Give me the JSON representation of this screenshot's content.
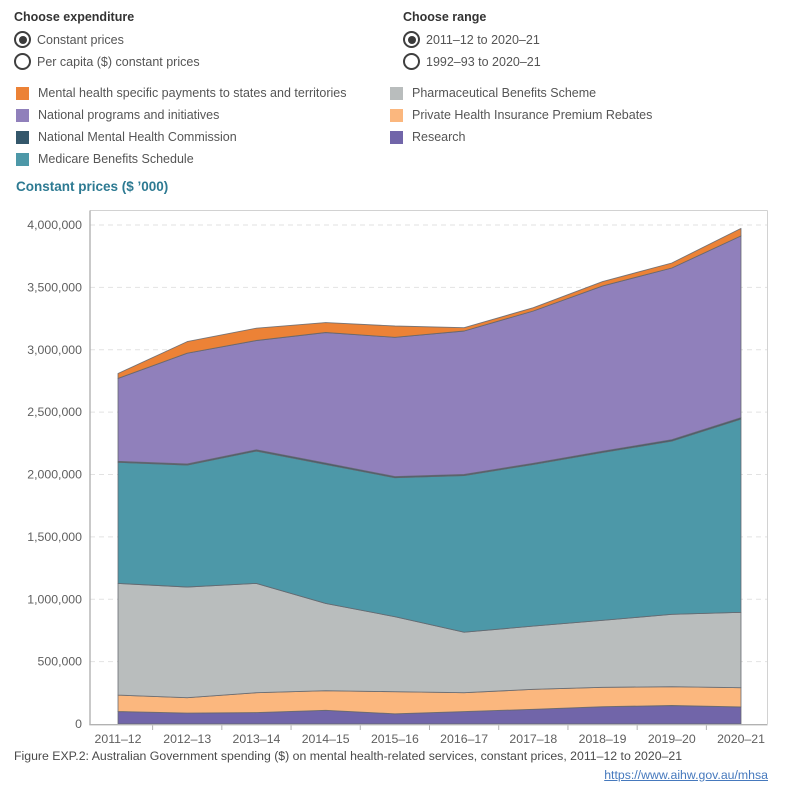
{
  "controls": {
    "expenditure": {
      "label": "Choose expenditure",
      "options": [
        {
          "label": "Constant prices",
          "selected": true
        },
        {
          "label": "Per capita ($) constant prices",
          "selected": false
        }
      ]
    },
    "range": {
      "label": "Choose range",
      "options": [
        {
          "label": "2011–12 to 2020–21",
          "selected": true
        },
        {
          "label": "1992–93 to 2020–21",
          "selected": false
        }
      ]
    }
  },
  "legend": {
    "columns": [
      [
        {
          "label": "Mental health specific payments to states and territories",
          "color": "#ec8236"
        },
        {
          "label": "National programs and initiatives",
          "color": "#9080bb"
        },
        {
          "label": "National Mental Health Commission",
          "color": "#34576b"
        },
        {
          "label": "Medicare Benefits Schedule",
          "color": "#4d98a8"
        }
      ],
      [
        {
          "label": "Pharmaceutical Benefits Scheme",
          "color": "#b9bdbd"
        },
        {
          "label": "Private Health Insurance Premium Rebates",
          "color": "#fbb77e"
        },
        {
          "label": "Research",
          "color": "#7165a9"
        }
      ]
    ]
  },
  "chart_title": "Constant prices ($ ’000)",
  "chart_data": {
    "type": "area",
    "stacked": true,
    "title": "Constant prices ($ ’000)",
    "x_categories": [
      "2011–12",
      "2012–13",
      "2013–14",
      "2014–15",
      "2015–16",
      "2016–17",
      "2017–18",
      "2018–19",
      "2019–20",
      "2020–21"
    ],
    "ylim": [
      0,
      4000000
    ],
    "ytick_step": 500000,
    "grid": "horizontal-dashed",
    "legend_position": "top",
    "units": "$ thousands, constant prices",
    "series_bottom_to_top": [
      {
        "name": "Research",
        "color": "#7165a9",
        "values": [
          100000,
          87000,
          91000,
          110000,
          82000,
          99000,
          118000,
          139000,
          148000,
          137000
        ]
      },
      {
        "name": "Private Health Insurance Premium Rebates",
        "color": "#fbb77e",
        "values": [
          132000,
          124000,
          160000,
          157000,
          177000,
          152000,
          160000,
          155000,
          151000,
          154000
        ]
      },
      {
        "name": "Pharmaceutical Benefits Scheme",
        "color": "#b9bdbd",
        "values": [
          895000,
          887000,
          876000,
          700000,
          601000,
          485000,
          507000,
          537000,
          580000,
          604000
        ]
      },
      {
        "name": "Medicare Benefits Schedule",
        "color": "#4d98a8",
        "values": [
          971000,
          977000,
          1061000,
          1114000,
          1114000,
          1256000,
          1296000,
          1346000,
          1389000,
          1549000
        ]
      },
      {
        "name": "National Mental Health Commission",
        "color": "#34576b",
        "values": [
          8000,
          9000,
          10000,
          10000,
          9000,
          9000,
          9000,
          10000,
          11000,
          11000
        ]
      },
      {
        "name": "National programs and initiatives",
        "color": "#9080bb",
        "values": [
          664000,
          888000,
          876000,
          1047000,
          1117000,
          1149000,
          1221000,
          1325000,
          1376000,
          1458000
        ]
      },
      {
        "name": "Mental health specific payments to states and territories",
        "color": "#ec8236",
        "values": [
          40000,
          93000,
          99000,
          80000,
          90000,
          27000,
          26000,
          34000,
          40000,
          60000
        ]
      }
    ]
  },
  "caption": {
    "text": "Figure EXP.2: Australian Government spending ($) on mental health-related services, constant prices, 2011–12 to 2020–21",
    "link": "https://www.aihw.gov.au/mhsa"
  },
  "colors": {
    "title": "#2d7a92",
    "axis_text": "#5f5f5f",
    "gridline": "#e2e2e2",
    "axis_line": "#b2b2b2",
    "plot_border": "#d2d2d2",
    "band_stroke": "#63666d",
    "link": "#4679bd"
  }
}
